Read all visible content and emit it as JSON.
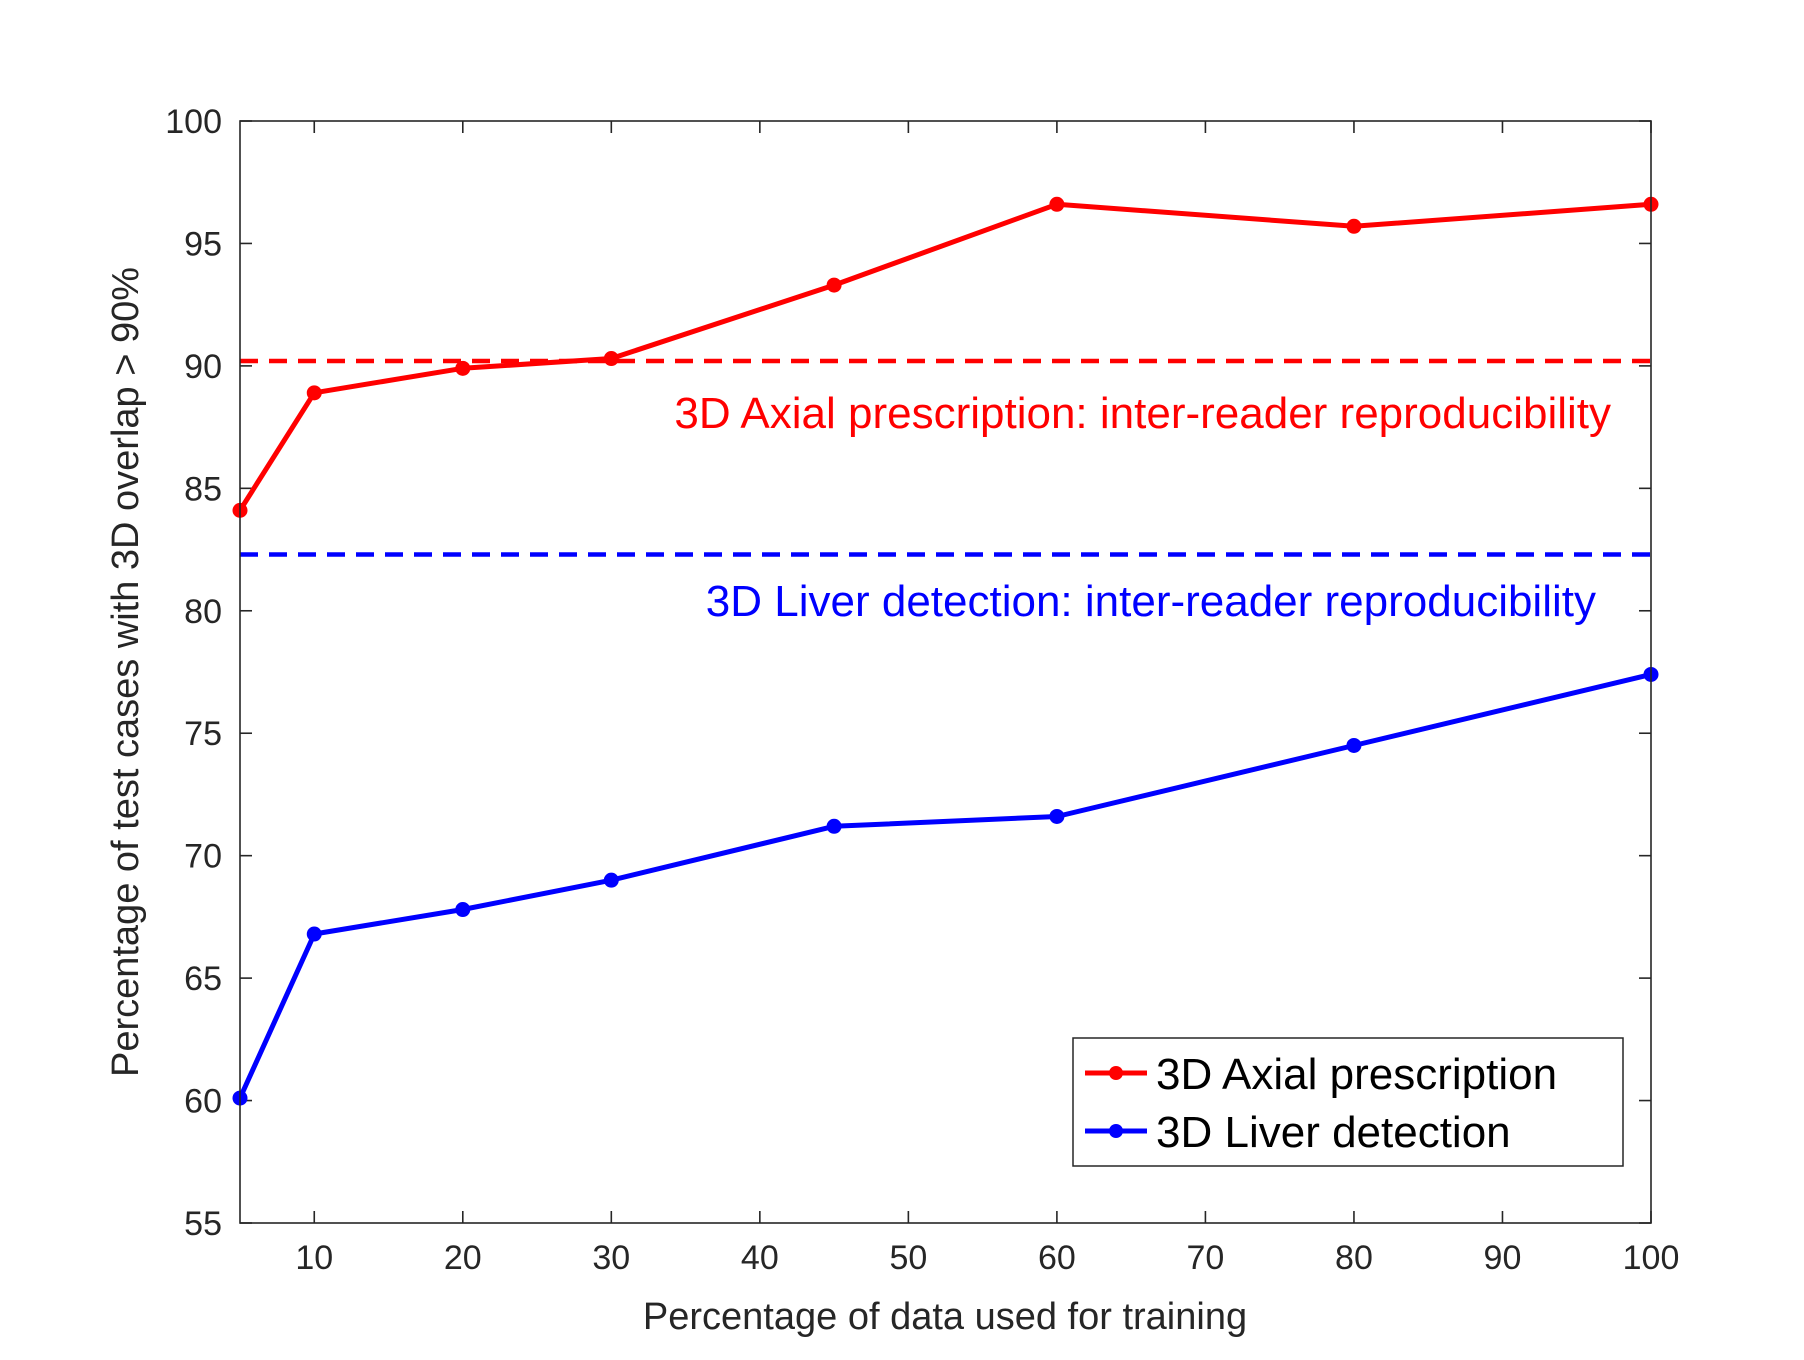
{
  "chart_data": {
    "type": "line",
    "title": "",
    "xlabel": "Percentage of data used for training",
    "ylabel": "Percentage of test cases with 3D overlap > 90%",
    "xlim": [
      5,
      100
    ],
    "ylim": [
      55,
      100
    ],
    "xticks": [
      10,
      20,
      30,
      40,
      50,
      60,
      70,
      80,
      90,
      100
    ],
    "yticks": [
      55,
      60,
      65,
      70,
      75,
      80,
      85,
      90,
      95,
      100
    ],
    "grid": false,
    "legend_position": "bottom-right",
    "series": [
      {
        "name": "3D Axial prescription",
        "color": "#ff0000",
        "x": [
          5,
          10,
          20,
          30,
          45,
          60,
          80,
          100
        ],
        "y": [
          84.1,
          88.9,
          89.9,
          90.3,
          93.3,
          96.6,
          95.7,
          96.6
        ]
      },
      {
        "name": "3D Liver detection",
        "color": "#0000ff",
        "x": [
          5,
          10,
          20,
          30,
          45,
          60,
          80,
          100
        ],
        "y": [
          60.1,
          66.8,
          67.8,
          69.0,
          71.2,
          71.6,
          74.5,
          77.4
        ]
      }
    ],
    "reference_lines": [
      {
        "label": "3D Axial prescription: inter-reader reproducibility",
        "y": 90.2,
        "color": "#ff0000",
        "style": "dashed"
      },
      {
        "label": "3D Liver detection: inter-reader reproducibility",
        "y": 82.3,
        "color": "#0000ff",
        "style": "dashed"
      }
    ]
  }
}
